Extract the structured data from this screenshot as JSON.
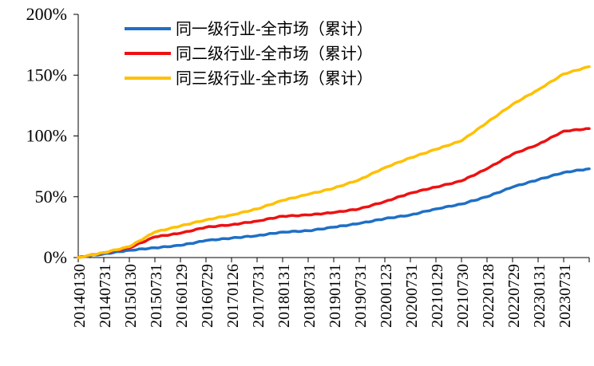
{
  "chart_data": {
    "type": "line",
    "title": "",
    "xlabel": "",
    "ylabel": "",
    "ylim": [
      0,
      200
    ],
    "y_unit": "%",
    "y_ticks": [
      "0%",
      "50%",
      "100%",
      "150%",
      "200%"
    ],
    "x_tick_labels": [
      "20140130",
      "20140731",
      "20150130",
      "20150731",
      "20160129",
      "20160729",
      "20170126",
      "20170731",
      "20180131",
      "20180731",
      "20190131",
      "20190731",
      "20200123",
      "20200731",
      "20210129",
      "20210730",
      "20220128",
      "20220729",
      "20230131",
      "20230731"
    ],
    "legend_position": "top-center",
    "grid": false,
    "colors": {
      "series1": "#1F6FC5",
      "series2": "#EE1111",
      "series3": "#FFC000"
    },
    "series": [
      {
        "name": "同一级行业-全市场（累计）",
        "color": "#1F6FC5",
        "x_index": [
          0,
          1,
          2,
          3,
          4,
          5,
          6,
          7,
          8,
          9,
          10,
          11,
          12,
          13,
          14,
          15,
          16,
          17,
          18,
          19,
          20
        ],
        "values": [
          0,
          3,
          6,
          8,
          10,
          14,
          16,
          18,
          21,
          22,
          25,
          28,
          32,
          35,
          40,
          44,
          50,
          58,
          64,
          70,
          73
        ]
      },
      {
        "name": "同二级行业-全市场（累计）",
        "color": "#EE1111",
        "x_index": [
          0,
          1,
          2,
          3,
          4,
          5,
          6,
          7,
          8,
          9,
          10,
          11,
          12,
          13,
          14,
          15,
          16,
          17,
          18,
          19,
          20
        ],
        "values": [
          0,
          4,
          8,
          17,
          20,
          25,
          27,
          30,
          34,
          35,
          37,
          40,
          46,
          53,
          58,
          63,
          73,
          85,
          93,
          104,
          106
        ]
      },
      {
        "name": "同三级行业-全市场（累计）",
        "color": "#FFC000",
        "x_index": [
          0,
          1,
          2,
          3,
          4,
          5,
          6,
          7,
          8,
          9,
          10,
          11,
          12,
          13,
          14,
          15,
          16,
          17,
          18,
          19,
          20
        ],
        "values": [
          0,
          4,
          9,
          21,
          26,
          31,
          35,
          40,
          47,
          52,
          57,
          64,
          74,
          82,
          89,
          96,
          111,
          126,
          138,
          151,
          157
        ]
      }
    ]
  }
}
